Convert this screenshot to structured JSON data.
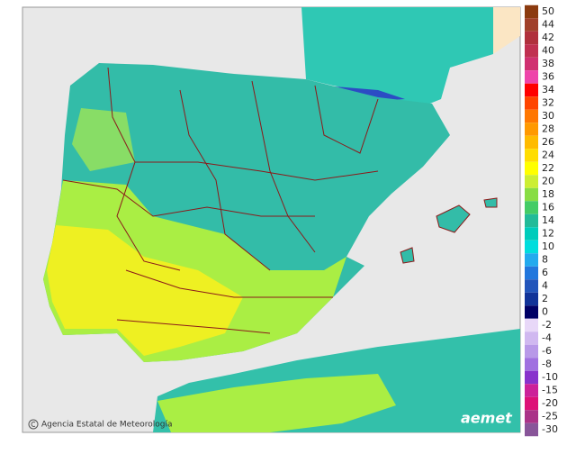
{
  "legend": {
    "labels": [
      "50",
      "44",
      "42",
      "40",
      "38",
      "36",
      "34",
      "32",
      "30",
      "28",
      "26",
      "24",
      "22",
      "20",
      "18",
      "16",
      "14",
      "12",
      "10",
      "8",
      "6",
      "4",
      "2",
      "0"
    ],
    "colors": [
      "#8b3a0f",
      "#a0402a",
      "#b0303c",
      "#c03050",
      "#d03070",
      "#ee44aa",
      "#ff0000",
      "#ff4400",
      "#ff7700",
      "#ff9900",
      "#ffbb00",
      "#ffdd00",
      "#ffff00",
      "#ccee33",
      "#88dd44",
      "#44cc66",
      "#22bb99",
      "#00ccbb",
      "#00dddd",
      "#22aaee",
      "#2277dd",
      "#2255bb",
      "#113399",
      "#000066"
    ],
    "neg_labels": [
      "-2",
      "-4",
      "-6",
      "-8",
      "-10",
      "-15",
      "-20",
      "-25",
      "-30"
    ],
    "neg_colors": [
      "#e8d8f8",
      "#d0b8f0",
      "#b898e8",
      "#a070e0",
      "#8833cc",
      "#cc2299",
      "#dd1177",
      "#aa3388",
      "#885599"
    ]
  },
  "credit": "Agencia Estatal de Meteorología",
  "logo": "aemet"
}
